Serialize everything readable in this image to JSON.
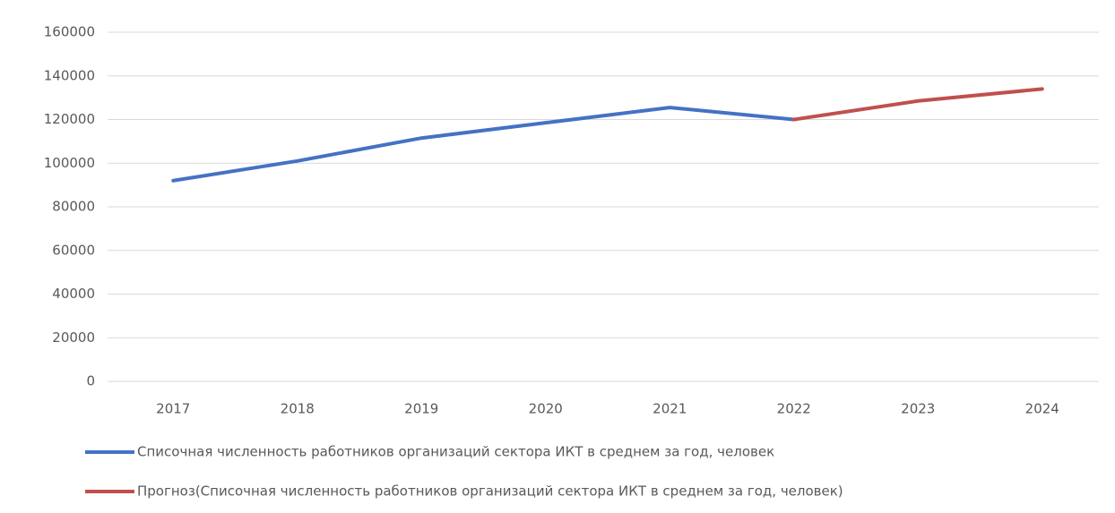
{
  "chart_data": {
    "type": "line",
    "categories": [
      "2017",
      "2018",
      "2019",
      "2020",
      "2021",
      "2022",
      "2023",
      "2024"
    ],
    "series": [
      {
        "name": "Списочная численность работников организаций сектора ИКТ в среднем за год, человек",
        "color": "#4472c4",
        "values": [
          92000,
          101000,
          111500,
          118500,
          125500,
          120000,
          null,
          null
        ]
      },
      {
        "name": "Прогноз(Списочная численность работников организаций сектора ИКТ в среднем за год, человек)",
        "color": "#c0504d",
        "values": [
          null,
          null,
          null,
          null,
          null,
          120000,
          128500,
          134000
        ]
      }
    ],
    "ylim": [
      0,
      160000
    ],
    "yticks": [
      0,
      20000,
      40000,
      60000,
      80000,
      100000,
      120000,
      140000,
      160000
    ],
    "grid": true
  }
}
